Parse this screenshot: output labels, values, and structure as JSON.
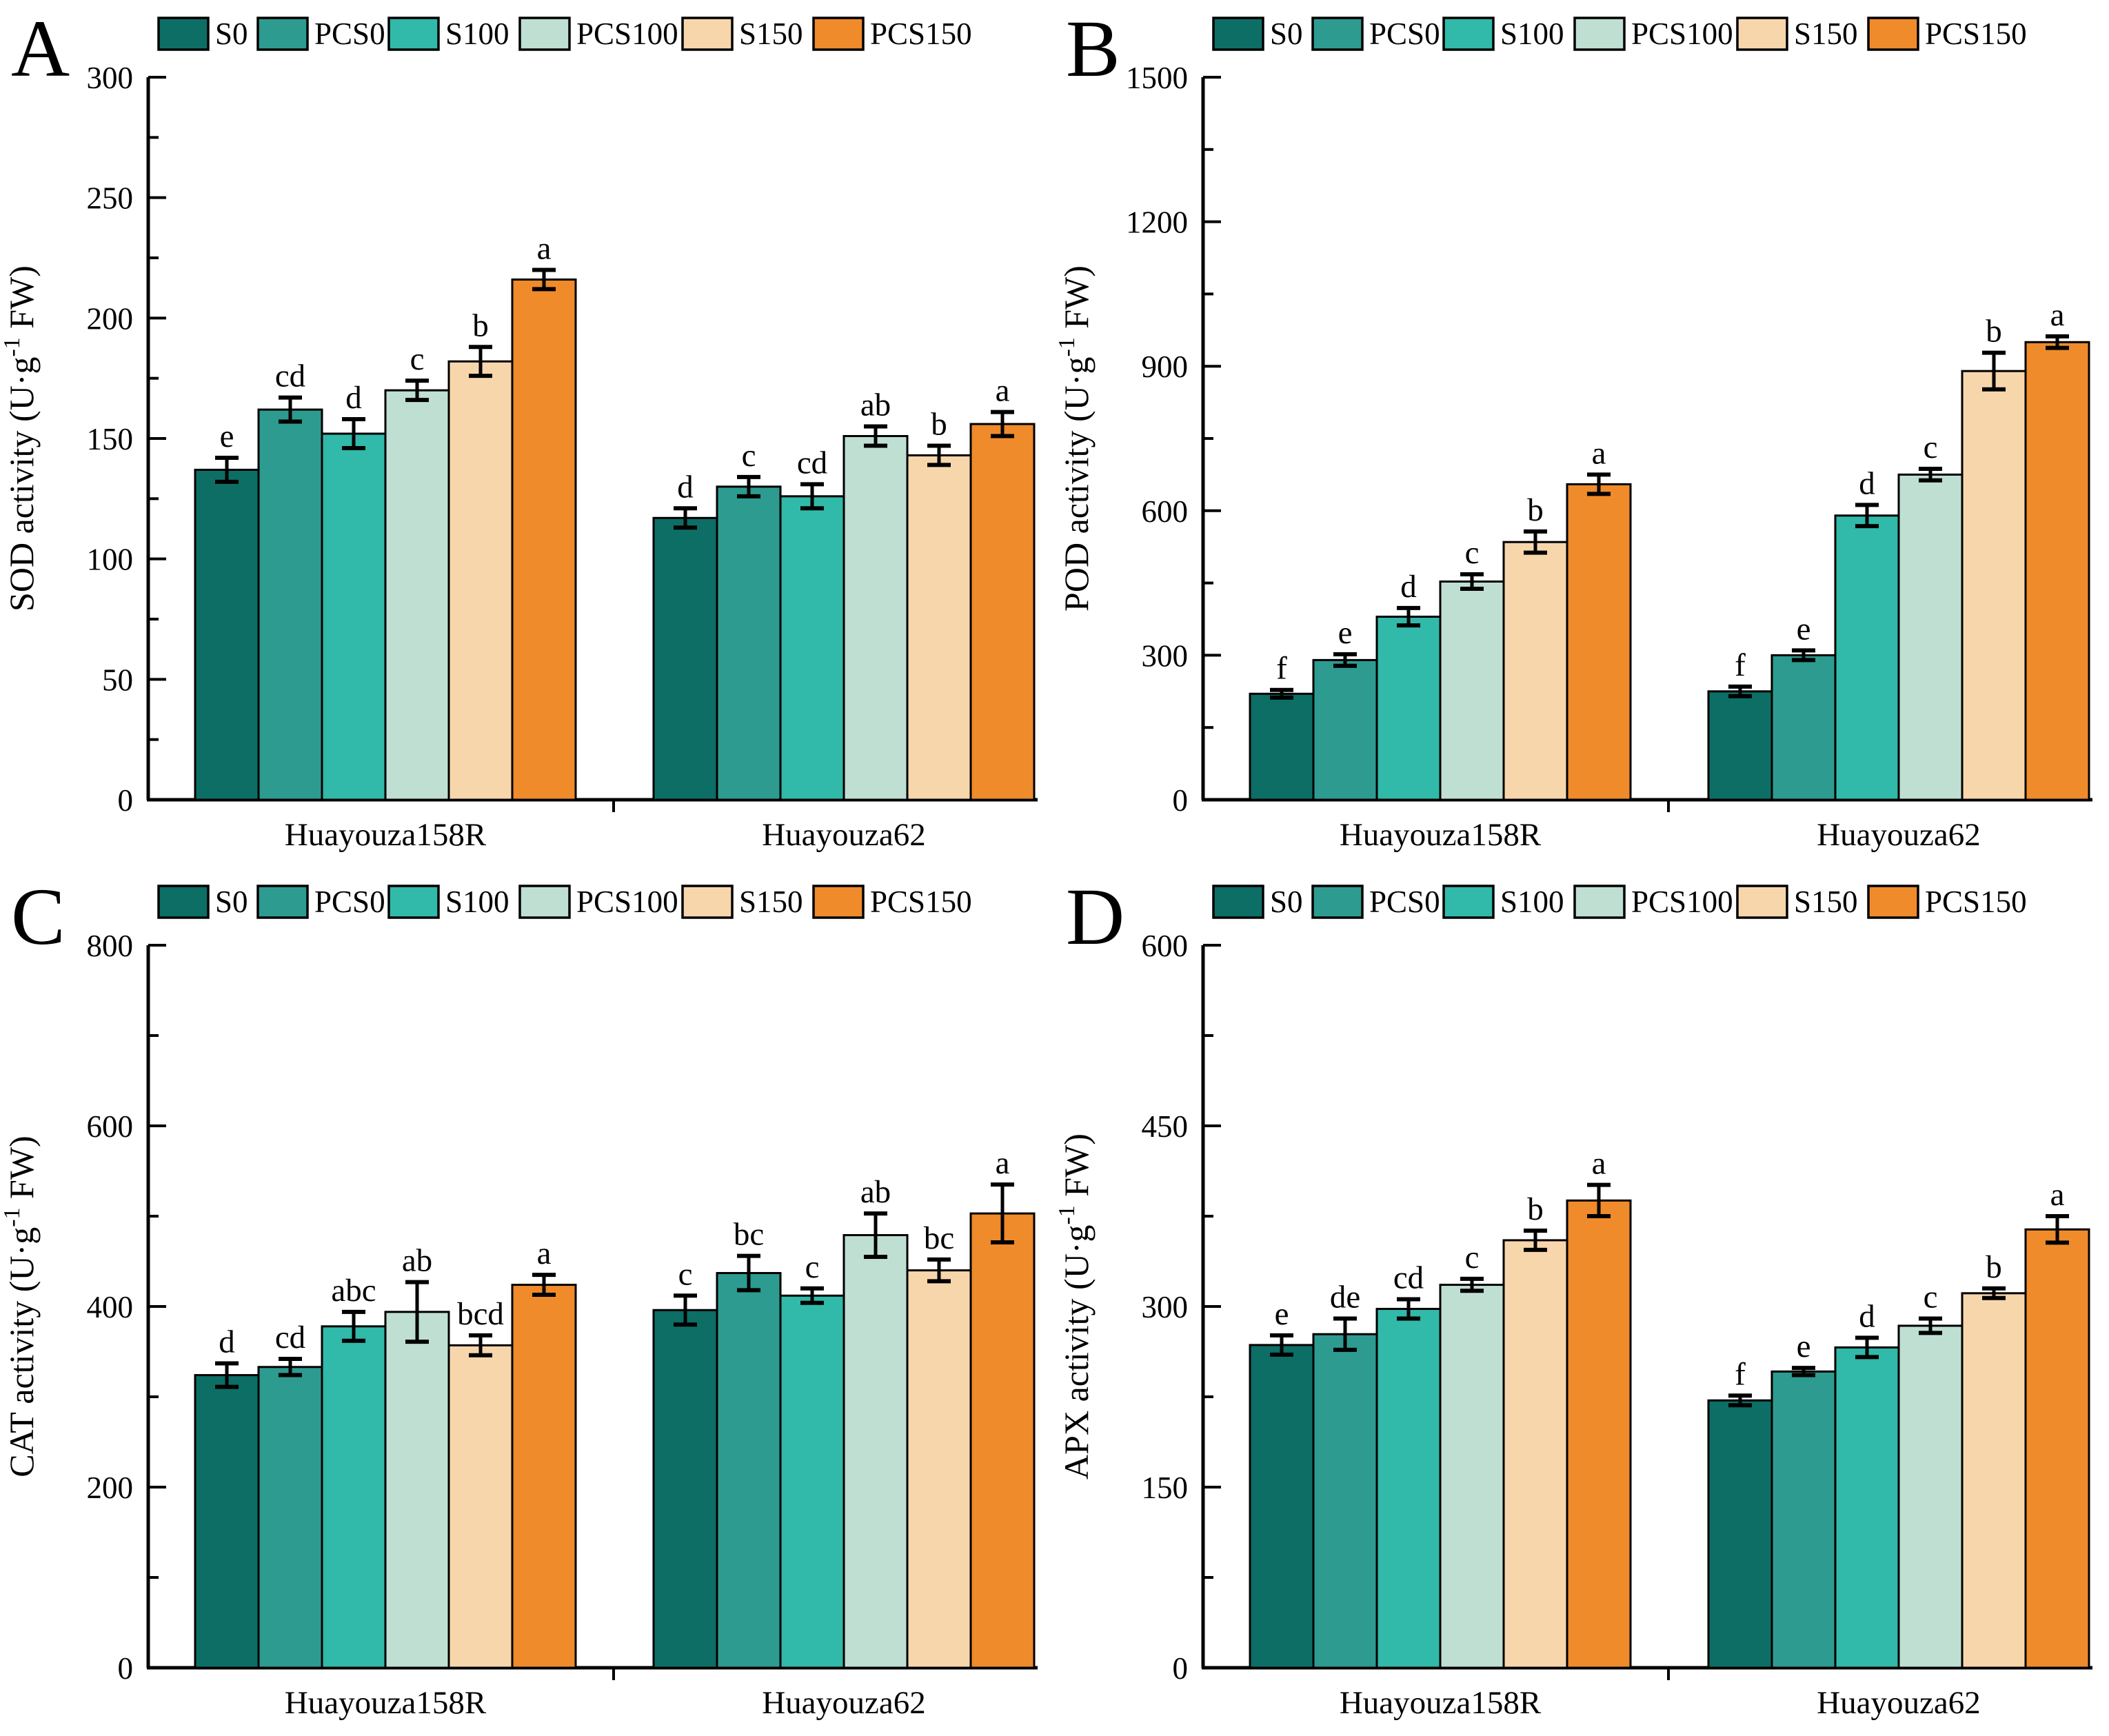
{
  "figure": {
    "background": "#ffffff"
  },
  "chart_data": [
    {
      "type": "bar",
      "panel_letter": "A",
      "ylabel_prefix": "SOD activity (U·g",
      "ylabel_sup": "-1",
      "ylabel_suffix": " FW)",
      "ylim": [
        0,
        300
      ],
      "ytick_major": 50,
      "ytick_minor": 25,
      "grid": false,
      "legend_position": "top",
      "categories": [
        "Huayouza158R",
        "Huayouza62"
      ],
      "series": [
        {
          "name": "S0",
          "color": "#0d6e66",
          "values": [
            137,
            117
          ],
          "errors": [
            5,
            4
          ],
          "sig": [
            "e",
            "d"
          ]
        },
        {
          "name": "PCS0",
          "color": "#2d9b90",
          "values": [
            162,
            130
          ],
          "errors": [
            5,
            4
          ],
          "sig": [
            "cd",
            "c"
          ]
        },
        {
          "name": "S100",
          "color": "#31b9a9",
          "values": [
            152,
            126
          ],
          "errors": [
            6,
            5
          ],
          "sig": [
            "d",
            "cd"
          ]
        },
        {
          "name": "PCS100",
          "color": "#bfdfd3",
          "values": [
            170,
            151
          ],
          "errors": [
            4,
            4
          ],
          "sig": [
            "c",
            "ab"
          ]
        },
        {
          "name": "S150",
          "color": "#f8d6ac",
          "values": [
            182,
            143
          ],
          "errors": [
            6,
            4
          ],
          "sig": [
            "b",
            "b"
          ]
        },
        {
          "name": "PCS150",
          "color": "#ef8b2b",
          "values": [
            216,
            156
          ],
          "errors": [
            4,
            5
          ],
          "sig": [
            "a",
            "a"
          ]
        }
      ]
    },
    {
      "type": "bar",
      "panel_letter": "B",
      "ylabel_prefix": "POD activity (U·g",
      "ylabel_sup": "-1",
      "ylabel_suffix": " FW)",
      "ylim": [
        0,
        1500
      ],
      "ytick_major": 300,
      "ytick_minor": 150,
      "grid": false,
      "legend_position": "top",
      "categories": [
        "Huayouza158R",
        "Huayouza62"
      ],
      "series": [
        {
          "name": "S0",
          "color": "#0d6e66",
          "values": [
            220,
            225
          ],
          "errors": [
            8,
            10
          ],
          "sig": [
            "f",
            "f"
          ]
        },
        {
          "name": "PCS0",
          "color": "#2d9b90",
          "values": [
            290,
            300
          ],
          "errors": [
            12,
            10
          ],
          "sig": [
            "e",
            "e"
          ]
        },
        {
          "name": "S100",
          "color": "#31b9a9",
          "values": [
            380,
            590
          ],
          "errors": [
            18,
            22
          ],
          "sig": [
            "d",
            "d"
          ]
        },
        {
          "name": "PCS100",
          "color": "#bfdfd3",
          "values": [
            453,
            675
          ],
          "errors": [
            15,
            12
          ],
          "sig": [
            "c",
            "c"
          ]
        },
        {
          "name": "S150",
          "color": "#f8d6ac",
          "values": [
            535,
            890
          ],
          "errors": [
            22,
            38
          ],
          "sig": [
            "b",
            "b"
          ]
        },
        {
          "name": "PCS150",
          "color": "#ef8b2b",
          "values": [
            655,
            950
          ],
          "errors": [
            20,
            12
          ],
          "sig": [
            "a",
            "a"
          ]
        }
      ]
    },
    {
      "type": "bar",
      "panel_letter": "C",
      "ylabel_prefix": "CAT activity (U·g",
      "ylabel_sup": "-1",
      "ylabel_suffix": " FW)",
      "ylim": [
        0,
        800
      ],
      "ytick_major": 200,
      "ytick_minor": 100,
      "grid": false,
      "legend_position": "top",
      "categories": [
        "Huayouza158R",
        "Huayouza62"
      ],
      "series": [
        {
          "name": "S0",
          "color": "#0d6e66",
          "values": [
            324,
            396
          ],
          "errors": [
            13,
            16
          ],
          "sig": [
            "d",
            "c"
          ]
        },
        {
          "name": "PCS0",
          "color": "#2d9b90",
          "values": [
            333,
            437
          ],
          "errors": [
            9,
            19
          ],
          "sig": [
            "cd",
            "bc"
          ]
        },
        {
          "name": "S100",
          "color": "#31b9a9",
          "values": [
            378,
            412
          ],
          "errors": [
            16,
            8
          ],
          "sig": [
            "abc",
            "c"
          ]
        },
        {
          "name": "PCS100",
          "color": "#bfdfd3",
          "values": [
            394,
            479
          ],
          "errors": [
            33,
            24
          ],
          "sig": [
            "ab",
            "ab"
          ]
        },
        {
          "name": "S150",
          "color": "#f8d6ac",
          "values": [
            357,
            440
          ],
          "errors": [
            11,
            12
          ],
          "sig": [
            "bcd",
            "bc"
          ]
        },
        {
          "name": "PCS150",
          "color": "#ef8b2b",
          "values": [
            424,
            503
          ],
          "errors": [
            11,
            32
          ],
          "sig": [
            "a",
            "a"
          ]
        }
      ]
    },
    {
      "type": "bar",
      "panel_letter": "D",
      "ylabel_prefix": "APX activity (U·g",
      "ylabel_sup": "-1",
      "ylabel_suffix": " FW)",
      "ylim": [
        0,
        600
      ],
      "ytick_major": 150,
      "ytick_minor": 75,
      "grid": false,
      "legend_position": "top",
      "categories": [
        "Huayouza158R",
        "Huayouza62"
      ],
      "series": [
        {
          "name": "S0",
          "color": "#0d6e66",
          "values": [
            268,
            222
          ],
          "errors": [
            8,
            4
          ],
          "sig": [
            "e",
            "f"
          ]
        },
        {
          "name": "PCS0",
          "color": "#2d9b90",
          "values": [
            277,
            246
          ],
          "errors": [
            13,
            3
          ],
          "sig": [
            "de",
            "e"
          ]
        },
        {
          "name": "S100",
          "color": "#31b9a9",
          "values": [
            298,
            266
          ],
          "errors": [
            8,
            8
          ],
          "sig": [
            "cd",
            "d"
          ]
        },
        {
          "name": "PCS100",
          "color": "#bfdfd3",
          "values": [
            318,
            284
          ],
          "errors": [
            5,
            6
          ],
          "sig": [
            "c",
            "c"
          ]
        },
        {
          "name": "S150",
          "color": "#f8d6ac",
          "values": [
            355,
            311
          ],
          "errors": [
            8,
            4
          ],
          "sig": [
            "b",
            "b"
          ]
        },
        {
          "name": "PCS150",
          "color": "#ef8b2b",
          "values": [
            388,
            364
          ],
          "errors": [
            13,
            11
          ],
          "sig": [
            "a",
            "a"
          ]
        }
      ]
    }
  ]
}
